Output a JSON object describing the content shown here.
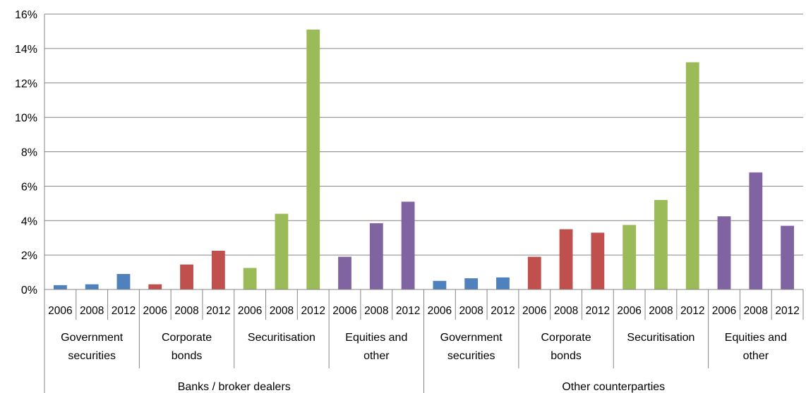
{
  "chart_data": {
    "type": "bar",
    "title": "",
    "xlabel": "",
    "ylabel": "",
    "ylim": [
      0,
      16
    ],
    "y_ticks": [
      "0%",
      "2%",
      "4%",
      "6%",
      "8%",
      "10%",
      "12%",
      "14%",
      "16%"
    ],
    "y_unit": "%",
    "grid": true,
    "legend": "none",
    "groups": [
      {
        "label": "Banks / broker dealers",
        "categories": [
          {
            "label_lines": [
              "Government",
              "securities"
            ],
            "color": "#4F81BD",
            "bars": [
              {
                "x": "2006",
                "value": 0.25
              },
              {
                "x": "2008",
                "value": 0.3
              },
              {
                "x": "2012",
                "value": 0.9
              }
            ]
          },
          {
            "label_lines": [
              "Corporate",
              "bonds"
            ],
            "color": "#C0504D",
            "bars": [
              {
                "x": "2006",
                "value": 0.3
              },
              {
                "x": "2008",
                "value": 1.45
              },
              {
                "x": "2012",
                "value": 2.25
              }
            ]
          },
          {
            "label_lines": [
              "Securitisation"
            ],
            "color": "#9BBB59",
            "bars": [
              {
                "x": "2006",
                "value": 1.25
              },
              {
                "x": "2008",
                "value": 4.4
              },
              {
                "x": "2012",
                "value": 15.1
              }
            ]
          },
          {
            "label_lines": [
              "Equities and",
              "other"
            ],
            "color": "#8064A2",
            "bars": [
              {
                "x": "2006",
                "value": 1.9
              },
              {
                "x": "2008",
                "value": 3.85
              },
              {
                "x": "2012",
                "value": 5.1
              }
            ]
          }
        ]
      },
      {
        "label": "Other counterparties",
        "categories": [
          {
            "label_lines": [
              "Government",
              "securities"
            ],
            "color": "#4F81BD",
            "bars": [
              {
                "x": "2006",
                "value": 0.5
              },
              {
                "x": "2008",
                "value": 0.65
              },
              {
                "x": "2012",
                "value": 0.7
              }
            ]
          },
          {
            "label_lines": [
              "Corporate",
              "bonds"
            ],
            "color": "#C0504D",
            "bars": [
              {
                "x": "2006",
                "value": 1.9
              },
              {
                "x": "2008",
                "value": 3.5
              },
              {
                "x": "2012",
                "value": 3.3
              }
            ]
          },
          {
            "label_lines": [
              "Securitisation"
            ],
            "color": "#9BBB59",
            "bars": [
              {
                "x": "2006",
                "value": 3.75
              },
              {
                "x": "2008",
                "value": 5.2
              },
              {
                "x": "2012",
                "value": 13.2
              }
            ]
          },
          {
            "label_lines": [
              "Equities and",
              "other"
            ],
            "color": "#8064A2",
            "bars": [
              {
                "x": "2006",
                "value": 4.25
              },
              {
                "x": "2008",
                "value": 6.8
              },
              {
                "x": "2012",
                "value": 3.7
              }
            ]
          }
        ]
      }
    ],
    "colors": {
      "grid": "#868686",
      "axis": "#868686"
    }
  }
}
